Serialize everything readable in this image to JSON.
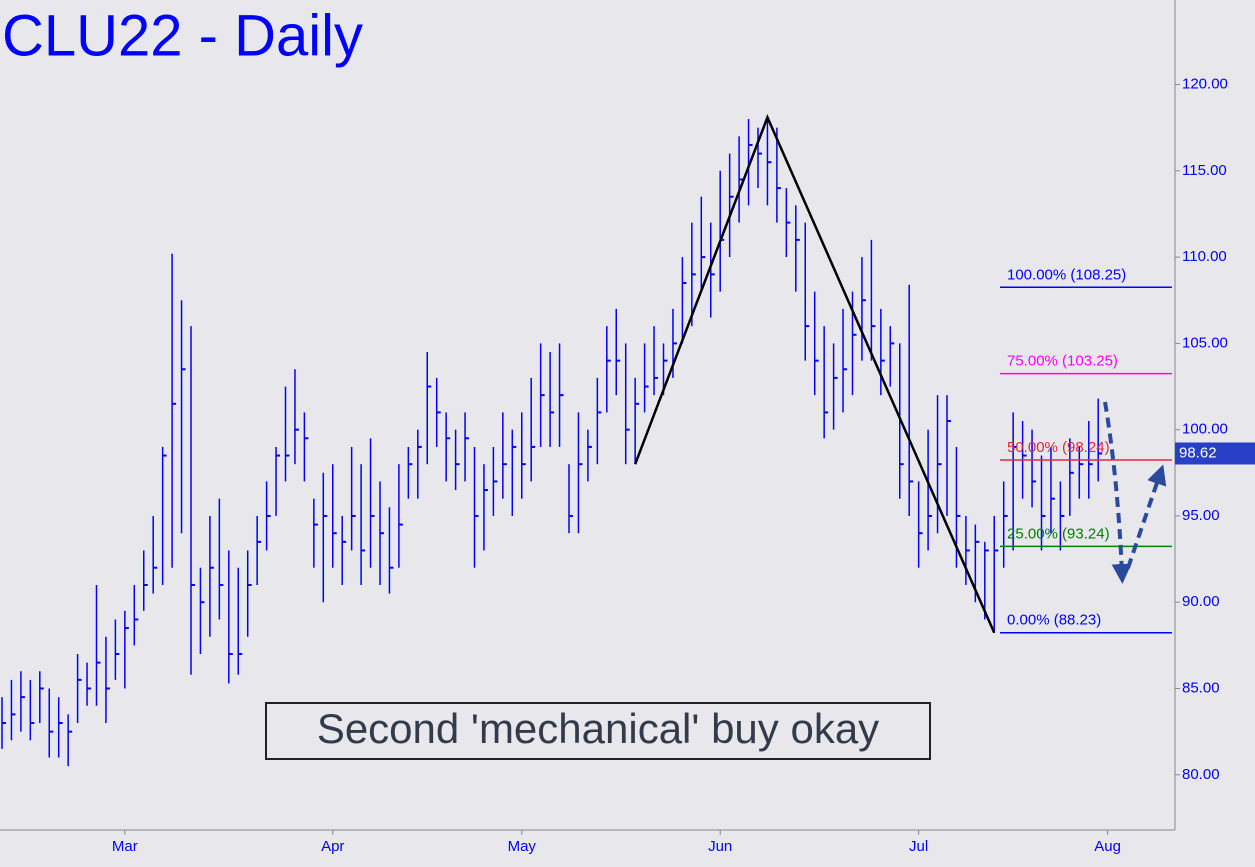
{
  "chart_data": {
    "type": "ohlc",
    "title": "CLU22 - Daily",
    "annotation": "Second 'mechanical' buy okay",
    "color": "#0000ff",
    "categories": [
      null,
      null,
      null,
      null,
      null,
      null,
      null,
      null,
      null,
      null,
      null,
      null,
      null,
      "Mar",
      null,
      null,
      null,
      null,
      null,
      null,
      null,
      null,
      null,
      null,
      null,
      null,
      null,
      null,
      null,
      null,
      null,
      null,
      null,
      null,
      null,
      "Apr",
      null,
      null,
      null,
      null,
      null,
      null,
      null,
      null,
      null,
      null,
      null,
      null,
      null,
      null,
      null,
      null,
      null,
      null,
      null,
      "May",
      null,
      null,
      null,
      null,
      null,
      null,
      null,
      null,
      null,
      null,
      null,
      null,
      null,
      null,
      null,
      null,
      null,
      null,
      null,
      null,
      "Jun",
      null,
      null,
      null,
      null,
      null,
      null,
      null,
      null,
      null,
      null,
      null,
      null,
      null,
      null,
      null,
      null,
      null,
      null,
      null,
      null,
      "Jul",
      null,
      null,
      null,
      null,
      null,
      null,
      null,
      null,
      null,
      null,
      null,
      null,
      null,
      null,
      null,
      null,
      null,
      null,
      null,
      "Aug"
    ],
    "high": [
      84.5,
      85.5,
      86,
      85.5,
      86,
      85,
      84.5,
      83.5,
      87,
      86.5,
      91,
      88,
      89,
      89.5,
      91,
      93,
      95,
      99,
      110.2,
      107.5,
      106,
      92,
      95,
      96,
      93,
      92,
      93,
      95,
      97,
      99,
      102.5,
      103.5,
      101,
      96,
      97.5,
      98,
      95,
      99,
      98,
      99.5,
      97,
      95.5,
      98,
      99,
      100,
      104.5,
      103,
      101,
      100,
      101,
      99,
      98,
      99,
      101,
      100,
      101,
      103,
      105,
      104.5,
      105,
      98,
      101,
      100,
      103,
      106,
      107,
      105,
      103,
      105,
      106,
      105,
      107,
      110,
      112,
      113.5,
      112,
      115,
      116,
      117,
      118,
      117.5,
      118.1,
      117.5,
      114,
      113,
      112,
      108,
      106,
      105,
      107,
      108,
      110,
      111,
      107,
      106,
      105,
      108.4,
      97,
      100,
      102,
      102,
      99,
      95,
      94.5,
      93.5,
      95,
      97,
      101,
      100.5,
      100,
      98.5,
      99,
      97,
      99.5,
      99,
      100.5,
      101.8,
      null
    ],
    "low": [
      81.5,
      82,
      82.5,
      82,
      83,
      81,
      81,
      80.5,
      83,
      84,
      84,
      83,
      85.5,
      85,
      87.5,
      89.5,
      90.5,
      91,
      92,
      94,
      85.8,
      87,
      88,
      89,
      85.3,
      85.8,
      88,
      91,
      93,
      95,
      97,
      98,
      97,
      92,
      90,
      92,
      91,
      93,
      91,
      92,
      91,
      90.5,
      92,
      96,
      96,
      98,
      99,
      97,
      96.5,
      97,
      92,
      93,
      95,
      96,
      95,
      96,
      97,
      99,
      99,
      99,
      94,
      94,
      97,
      98,
      101,
      102,
      98,
      98,
      101,
      102,
      102,
      103,
      105,
      106,
      108,
      106.5,
      108,
      110,
      112,
      113,
      114,
      113,
      112,
      110,
      108,
      104,
      102,
      99.5,
      100,
      101,
      102,
      104,
      104,
      102,
      102.5,
      96,
      95,
      92,
      93,
      94,
      95,
      92,
      91,
      90,
      89,
      88.23,
      92,
      93,
      96,
      95.5,
      93,
      94,
      93,
      95,
      96,
      96,
      97,
      null
    ],
    "close": [
      83,
      83.5,
      84.5,
      83,
      85,
      82.5,
      83,
      82.5,
      85.5,
      85,
      86.5,
      85,
      87,
      88.5,
      89,
      91,
      92,
      98.5,
      101.5,
      103.5,
      91,
      90,
      92,
      91,
      87,
      87,
      91,
      93.5,
      95,
      98.5,
      98.5,
      100,
      99.5,
      94.5,
      95,
      94,
      93.5,
      95,
      93,
      95,
      94,
      92,
      94.5,
      98,
      99,
      102.5,
      101,
      99.5,
      98,
      99.5,
      95,
      96.5,
      97,
      98,
      99,
      98,
      99,
      102,
      101,
      102,
      95,
      98,
      99,
      101,
      104,
      104,
      100,
      101.5,
      102.5,
      103,
      104,
      105,
      108.5,
      109,
      110,
      109,
      111,
      113.5,
      114.5,
      116.5,
      116,
      115.5,
      114,
      112,
      111,
      106,
      104,
      101,
      103,
      103.5,
      105.5,
      107.5,
      106,
      104,
      105,
      98,
      97,
      94,
      95,
      98,
      100.5,
      95,
      93,
      93.5,
      93,
      93,
      95,
      99,
      98.5,
      97,
      95,
      96,
      95,
      97.5,
      98,
      98,
      98.62,
      null
    ],
    "ylim": [
      76.8,
      124.9
    ],
    "yticks": [
      {
        "value": 80,
        "label": "80.00"
      },
      {
        "value": 85,
        "label": "85.00"
      },
      {
        "value": 90,
        "label": "90.00"
      },
      {
        "value": 95,
        "label": "95.00"
      },
      {
        "value": 100,
        "label": "100.00"
      },
      {
        "value": 105,
        "label": "105.00"
      },
      {
        "value": 110,
        "label": "110.00"
      },
      {
        "value": 115,
        "label": "115.00"
      },
      {
        "value": 120,
        "label": "120.00"
      }
    ],
    "price_marker": 98.62,
    "swing_line": {
      "color": "#000000",
      "bars": [
        67,
        81,
        105
      ],
      "values": [
        98,
        118.1,
        88.23
      ]
    },
    "fib_levels": [
      {
        "label": "100.00% (108.25)",
        "value": 108.25,
        "color": "#0000ff"
      },
      {
        "label": "75.00% (103.25)",
        "value": 103.25,
        "color": "#ff00ff"
      },
      {
        "label": "50.00% (98.24)",
        "value": 98.24,
        "color": "#e0283c"
      },
      {
        "label": "25.00% (93.24)",
        "value": 93.24,
        "color": "#008000"
      },
      {
        "label": "0.00% (88.23)",
        "value": 88.23,
        "color": "#0000ff"
      }
    ]
  }
}
